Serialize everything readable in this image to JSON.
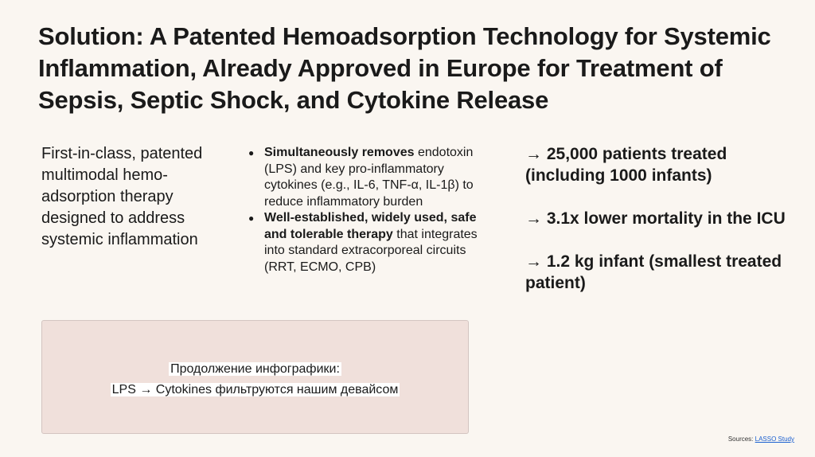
{
  "title": "Solution: A Patented Hemoadsorption Technology for Systemic Inflammation, Already Approved in Europe for Treatment of Sepsis, Septic Shock, and Cytokine Release",
  "lead": "First-in-class, patented multimodal hemo-adsorption therapy designed to address systemic inflammation",
  "bullets": [
    {
      "bold": "Simultaneously removes",
      "text": "endotoxin (LPS) and key pro-inflammatory cytokines (e.g., IL-6, TNF-α, IL-1β) to reduce inflammatory burden"
    },
    {
      "bold": "Well-established, widely used, safe and tolerable therapy",
      "text": "that integrates into standard extracorporeal circuits (RRT, ECMO, CPB)"
    }
  ],
  "stats": [
    "→ 25,000 patients treated (including 1000 infants)",
    "→ 3.1x lower mortality in the ICU",
    "→ 1.2 kg infant (smallest treated patient)"
  ],
  "infographic": {
    "line1": "Продолжение инфографики:",
    "line2": "LPS → Cytokines фильтруются нашим девайсом"
  },
  "sources": {
    "label": "Sources:",
    "link": "LASSO Study"
  }
}
